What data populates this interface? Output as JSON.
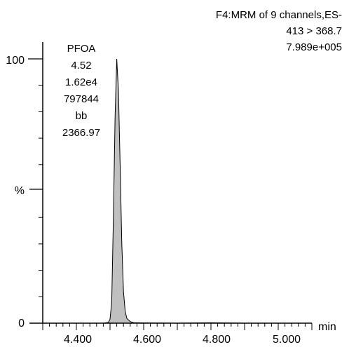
{
  "chart_data": {
    "type": "area",
    "header": [
      "F4:MRM of 9 channels,ES-",
      "413 > 368.7",
      "7.989e+005"
    ],
    "peak_label": [
      "PFOA",
      "4.52",
      "1.62e4",
      "797844",
      "bb",
      "2366.97"
    ],
    "ylabel": "%",
    "xlabel": "min",
    "xlim": [
      4.3,
      5.1
    ],
    "ylim": [
      0,
      100
    ],
    "x_ticks": [
      "4.400",
      "4.600",
      "4.800",
      "5.000"
    ],
    "y_ticks": [
      "0",
      "100"
    ],
    "series": [
      {
        "x": [
          4.3,
          4.4,
          4.48,
          4.495,
          4.5,
          4.505,
          4.51,
          4.515,
          4.52,
          4.525,
          4.53,
          4.535,
          4.54,
          4.545,
          4.55,
          4.56,
          4.57,
          4.6,
          4.7,
          4.8,
          4.9,
          5.0,
          5.1
        ],
        "y": [
          0.0,
          0.0,
          0.0,
          0.3,
          1.5,
          8.0,
          40.0,
          78.0,
          100.0,
          88.0,
          60.0,
          30.0,
          12.0,
          4.5,
          1.8,
          0.6,
          0.2,
          0.1,
          0.0,
          0.15,
          0.0,
          0.0,
          0.0
        ],
        "fill": "#c0c0c0",
        "stroke": "#000000"
      }
    ]
  }
}
